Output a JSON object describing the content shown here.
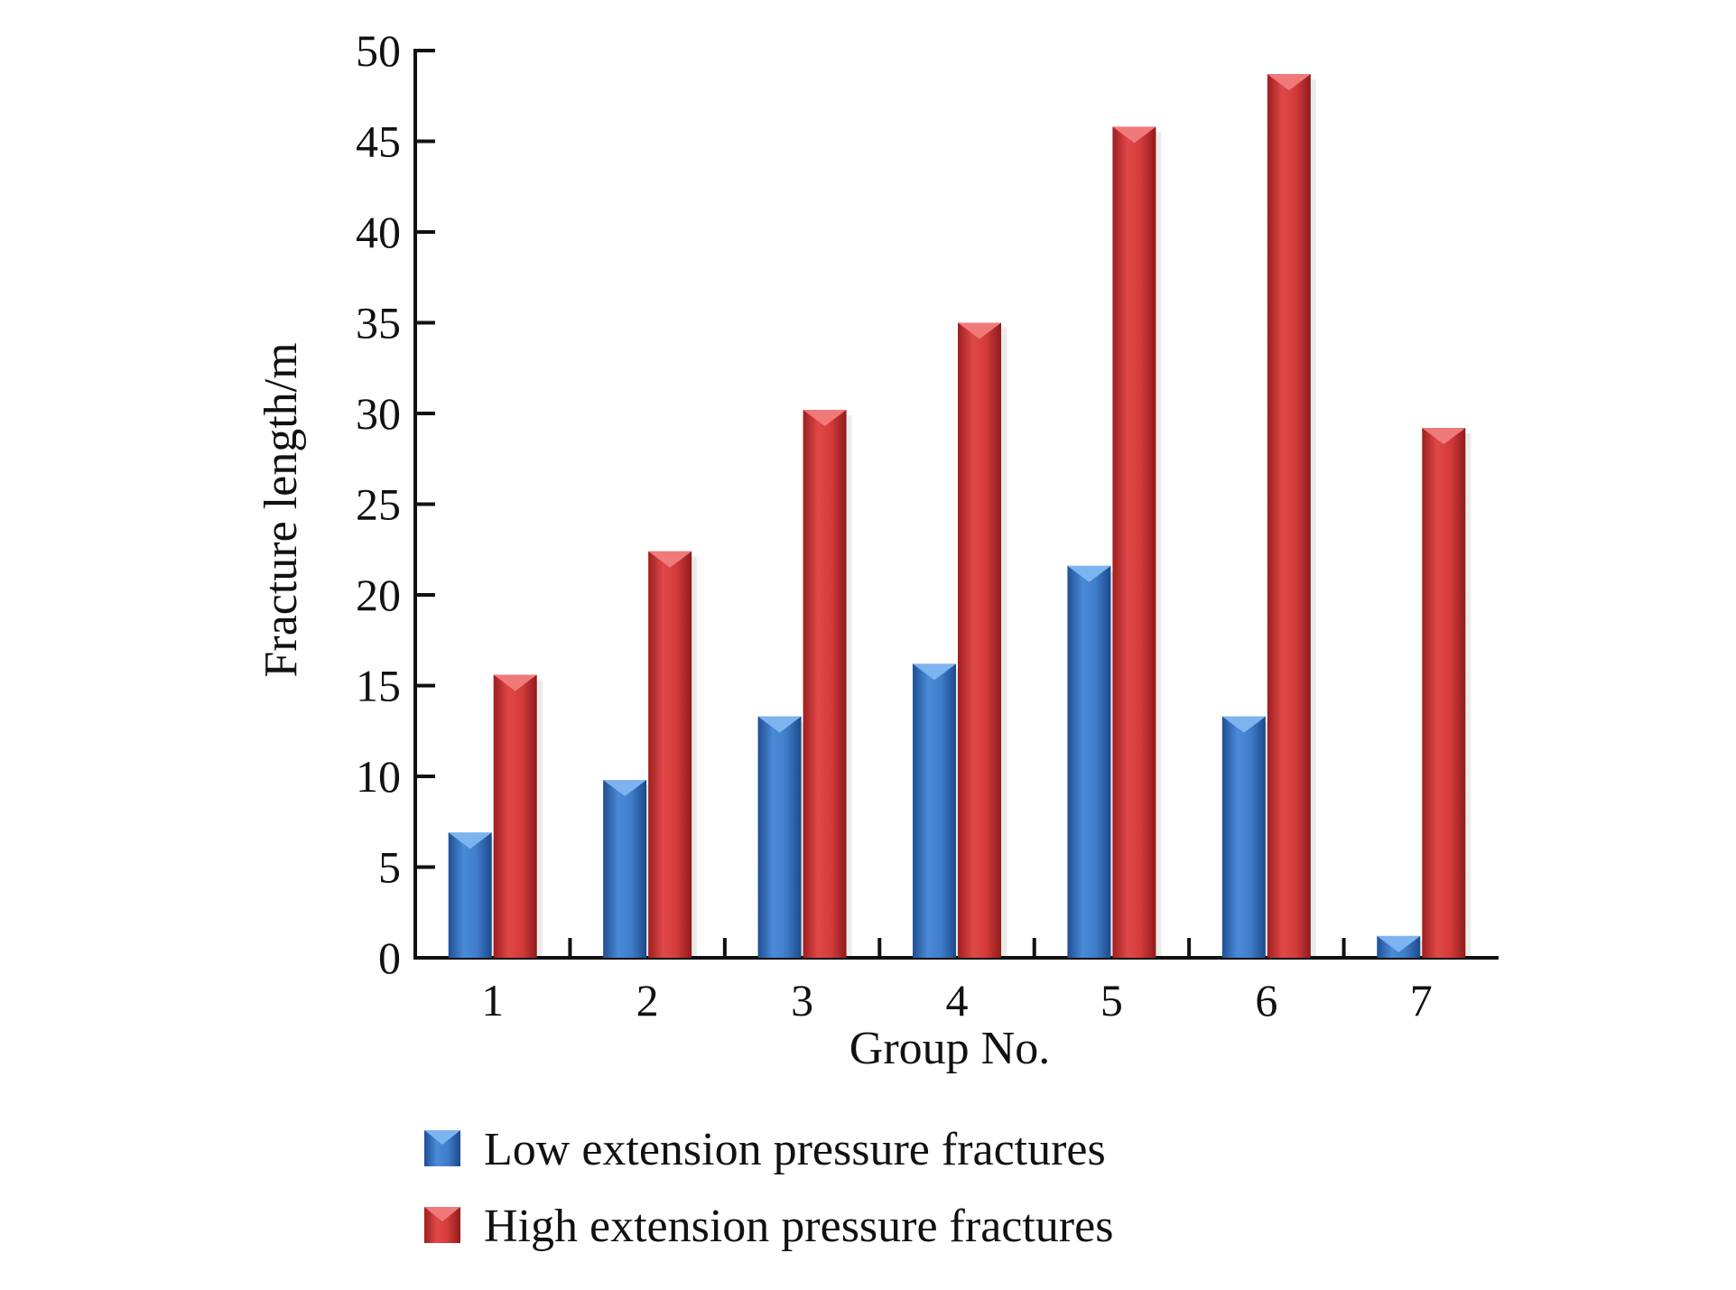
{
  "chart_data": {
    "type": "bar",
    "title": "",
    "xlabel": "Group No.",
    "ylabel": "Fracture length/m",
    "categories": [
      "1",
      "2",
      "3",
      "4",
      "5",
      "6",
      "7"
    ],
    "ylim": [
      0,
      50
    ],
    "yticks": [
      "0",
      "5",
      "10",
      "15",
      "20",
      "25",
      "30",
      "35",
      "40",
      "45",
      "50"
    ],
    "series": [
      {
        "name": "Low extension pressure fractures",
        "color": "#3a78c8",
        "values": [
          6.9,
          9.8,
          13.3,
          16.2,
          21.6,
          13.3,
          1.2
        ]
      },
      {
        "name": "High extension pressure fractures",
        "color": "#d43838",
        "values": [
          15.6,
          22.4,
          30.2,
          35.0,
          45.8,
          48.7,
          29.2
        ]
      }
    ],
    "legend_position": "bottom",
    "grid": false
  }
}
